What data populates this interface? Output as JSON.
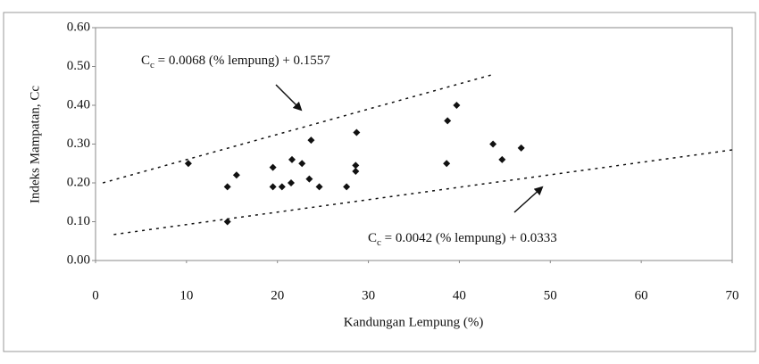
{
  "chart_data": {
    "type": "scatter",
    "x_label": "Kandungan Lempung (%)",
    "y_label": "Indeks Mampatan, Cc",
    "xlim": [
      0,
      70
    ],
    "xticks": [
      0,
      10,
      20,
      30,
      40,
      50,
      60,
      70
    ],
    "ylim": [
      0,
      0.6
    ],
    "yticks": [
      {
        "value": 0,
        "label": "0.00"
      },
      {
        "value": 0.1,
        "label": "0.10"
      },
      {
        "value": 0.2,
        "label": "0.20"
      },
      {
        "value": 0.3,
        "label": "0.30"
      },
      {
        "value": 0.4,
        "label": "0.40"
      },
      {
        "value": 0.5,
        "label": "0.50"
      },
      {
        "value": 0.6,
        "label": "0.60"
      }
    ],
    "color": "#111111",
    "x": [
      10.2,
      14.5,
      14.5,
      15.5,
      19.5,
      19.5,
      20.5,
      21.5,
      21.6,
      22.7,
      23.5,
      23.7,
      24.6,
      27.6,
      28.6,
      28.6,
      28.7,
      38.6,
      38.7,
      39.7,
      43.7,
      44.7,
      46.8
    ],
    "values": [
      0.25,
      0.19,
      0.1,
      0.22,
      0.24,
      0.19,
      0.19,
      0.2,
      0.26,
      0.25,
      0.21,
      0.31,
      0.19,
      0.19,
      0.23,
      0.245,
      0.33,
      0.25,
      0.36,
      0.4,
      0.3,
      0.26,
      0.29
    ],
    "trend_lines": [
      {
        "x": [
          0.8,
          43.8
        ],
        "values": [
          0.2,
          0.48
        ]
      },
      {
        "x": [
          2,
          70
        ],
        "values": [
          0.067,
          0.285
        ]
      }
    ],
    "annotations": [
      {
        "symbol": "C",
        "subscript": "c",
        "text": " = 0.0068 (% lempung) + 0.1557"
      },
      {
        "symbol": "C",
        "subscript": "c",
        "text": " = 0.0042 (% lempung) + 0.0333"
      }
    ]
  }
}
